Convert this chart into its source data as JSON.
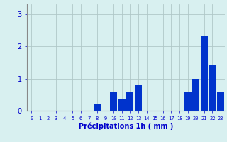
{
  "hours": [
    0,
    1,
    2,
    3,
    4,
    5,
    6,
    7,
    8,
    9,
    10,
    11,
    12,
    13,
    14,
    15,
    16,
    17,
    18,
    19,
    20,
    21,
    22,
    23
  ],
  "values": [
    0,
    0,
    0,
    0,
    0,
    0,
    0,
    0,
    0.2,
    0,
    0.6,
    0.35,
    0.6,
    0.8,
    0,
    0,
    0,
    0,
    0,
    0.6,
    1.0,
    2.3,
    1.4,
    0.6
  ],
  "bar_color": "#0033cc",
  "background_color": "#d8f0f0",
  "grid_color": "#b0c8c8",
  "xlabel": "Précipitations 1h ( mm )",
  "xlabel_color": "#0000cc",
  "tick_color": "#0000cc",
  "yticks": [
    0,
    1,
    2,
    3
  ],
  "ylim": [
    0,
    3.3
  ],
  "xlim": [
    -0.5,
    23.5
  ]
}
